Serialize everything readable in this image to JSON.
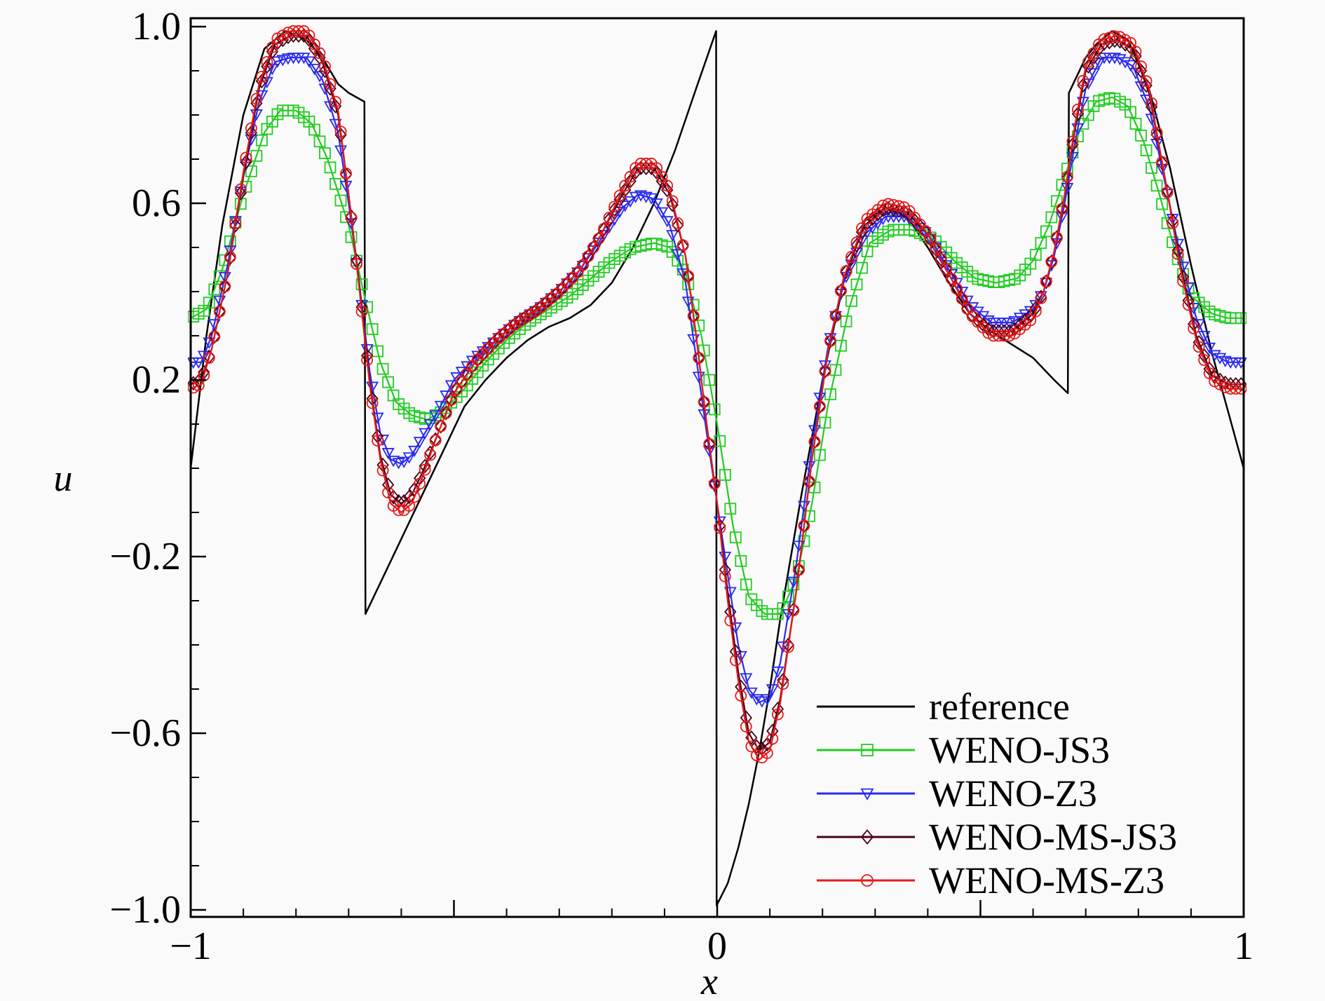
{
  "chart_data": {
    "type": "line",
    "title": "",
    "xlabel": "x",
    "ylabel": "u",
    "xlim": [
      -1,
      1
    ],
    "ylim": [
      -1.0,
      1.0
    ],
    "x_ticks": [
      -1,
      0,
      1
    ],
    "x_tick_labels": [
      "−1",
      "0",
      "1"
    ],
    "y_ticks": [
      1.0,
      0.6,
      0.2,
      -0.2,
      -0.6,
      -1.0
    ],
    "y_tick_labels": [
      "1.0",
      "0.6",
      "0.2",
      "−0.2",
      "−0.6",
      "−1.0"
    ],
    "legend_position": "bottom-right",
    "series": [
      {
        "name": "reference",
        "color": "#000000",
        "marker": "none",
        "x": [
          -1.0,
          -0.97,
          -0.94,
          -0.9,
          -0.86,
          -0.82,
          -0.78,
          -0.75,
          -0.72,
          -0.7,
          -0.67,
          -0.668,
          -0.64,
          -0.6,
          -0.56,
          -0.52,
          -0.48,
          -0.44,
          -0.4,
          -0.36,
          -0.32,
          -0.28,
          -0.24,
          -0.2,
          -0.16,
          -0.12,
          -0.08,
          -0.04,
          -0.002,
          -0.001,
          0.02,
          0.04,
          0.06,
          0.08,
          0.1,
          0.12,
          0.16,
          0.2,
          0.24,
          0.28,
          0.32,
          0.36,
          0.4,
          0.44,
          0.48,
          0.52,
          0.56,
          0.6,
          0.64,
          0.666,
          0.668,
          0.7,
          0.72,
          0.75,
          0.78,
          0.82,
          0.86,
          0.9,
          0.94,
          0.97,
          1.0
        ],
        "y": [
          0.0,
          0.3,
          0.55,
          0.8,
          0.95,
          0.99,
          0.97,
          0.93,
          0.87,
          0.85,
          0.83,
          -0.33,
          -0.26,
          -0.16,
          -0.06,
          0.04,
          0.14,
          0.2,
          0.25,
          0.29,
          0.32,
          0.34,
          0.37,
          0.42,
          0.5,
          0.6,
          0.72,
          0.86,
          0.99,
          -0.99,
          -0.94,
          -0.86,
          -0.76,
          -0.64,
          -0.5,
          -0.34,
          -0.06,
          0.2,
          0.42,
          0.56,
          0.59,
          0.57,
          0.5,
          0.42,
          0.35,
          0.31,
          0.28,
          0.25,
          0.2,
          0.17,
          0.85,
          0.93,
          0.96,
          0.99,
          0.97,
          0.86,
          0.68,
          0.46,
          0.26,
          0.13,
          0.0
        ]
      },
      {
        "name": "WENO-JS3",
        "color": "#22cc22",
        "marker": "square",
        "x": [
          -1.0,
          -0.97,
          -0.94,
          -0.9,
          -0.86,
          -0.83,
          -0.8,
          -0.77,
          -0.74,
          -0.7,
          -0.67,
          -0.64,
          -0.61,
          -0.58,
          -0.55,
          -0.52,
          -0.48,
          -0.44,
          -0.4,
          -0.36,
          -0.32,
          -0.28,
          -0.24,
          -0.2,
          -0.16,
          -0.12,
          -0.09,
          -0.06,
          -0.03,
          0.0,
          0.03,
          0.06,
          0.09,
          0.12,
          0.15,
          0.18,
          0.21,
          0.25,
          0.29,
          0.33,
          0.37,
          0.41,
          0.45,
          0.49,
          0.53,
          0.57,
          0.6,
          0.63,
          0.66,
          0.69,
          0.72,
          0.75,
          0.78,
          0.81,
          0.84,
          0.87,
          0.9,
          0.94,
          0.97,
          1.0
        ],
        "y": [
          0.34,
          0.36,
          0.45,
          0.62,
          0.76,
          0.81,
          0.81,
          0.78,
          0.7,
          0.55,
          0.39,
          0.24,
          0.15,
          0.12,
          0.11,
          0.13,
          0.18,
          0.24,
          0.29,
          0.33,
          0.36,
          0.39,
          0.43,
          0.47,
          0.5,
          0.51,
          0.5,
          0.44,
          0.3,
          0.1,
          -0.13,
          -0.29,
          -0.33,
          -0.33,
          -0.25,
          -0.08,
          0.14,
          0.36,
          0.51,
          0.54,
          0.54,
          0.52,
          0.47,
          0.43,
          0.42,
          0.43,
          0.47,
          0.55,
          0.66,
          0.77,
          0.83,
          0.84,
          0.82,
          0.74,
          0.62,
          0.49,
          0.39,
          0.35,
          0.34,
          0.34
        ]
      },
      {
        "name": "WENO-Z3",
        "color": "#2a2af0",
        "marker": "triangle-down",
        "x": [
          -1.0,
          -0.98,
          -0.96,
          -0.93,
          -0.9,
          -0.87,
          -0.84,
          -0.81,
          -0.78,
          -0.75,
          -0.72,
          -0.7,
          -0.68,
          -0.66,
          -0.64,
          -0.62,
          -0.6,
          -0.58,
          -0.56,
          -0.53,
          -0.5,
          -0.46,
          -0.42,
          -0.38,
          -0.34,
          -0.3,
          -0.26,
          -0.22,
          -0.18,
          -0.15,
          -0.12,
          -0.09,
          -0.06,
          -0.04,
          -0.02,
          0.0,
          0.02,
          0.04,
          0.06,
          0.08,
          0.1,
          0.12,
          0.15,
          0.18,
          0.21,
          0.24,
          0.28,
          0.32,
          0.36,
          0.4,
          0.44,
          0.48,
          0.52,
          0.56,
          0.6,
          0.62,
          0.64,
          0.66,
          0.68,
          0.7,
          0.73,
          0.76,
          0.79,
          0.82,
          0.85,
          0.88,
          0.91,
          0.94,
          0.97,
          1.0
        ],
        "y": [
          0.24,
          0.24,
          0.3,
          0.46,
          0.66,
          0.83,
          0.92,
          0.93,
          0.93,
          0.88,
          0.76,
          0.6,
          0.42,
          0.22,
          0.08,
          0.02,
          0.01,
          0.03,
          0.07,
          0.13,
          0.2,
          0.25,
          0.29,
          0.33,
          0.36,
          0.4,
          0.45,
          0.52,
          0.59,
          0.62,
          0.61,
          0.55,
          0.42,
          0.25,
          0.08,
          -0.08,
          -0.24,
          -0.4,
          -0.5,
          -0.53,
          -0.52,
          -0.44,
          -0.22,
          0.05,
          0.27,
          0.42,
          0.53,
          0.57,
          0.57,
          0.53,
          0.45,
          0.37,
          0.33,
          0.33,
          0.36,
          0.4,
          0.48,
          0.6,
          0.74,
          0.86,
          0.93,
          0.93,
          0.91,
          0.82,
          0.65,
          0.48,
          0.34,
          0.26,
          0.24,
          0.24
        ]
      },
      {
        "name": "WENO-MS-JS3",
        "color": "#4a0018",
        "marker": "diamond",
        "x": [
          -1.0,
          -0.98,
          -0.96,
          -0.93,
          -0.9,
          -0.87,
          -0.84,
          -0.81,
          -0.78,
          -0.75,
          -0.72,
          -0.7,
          -0.68,
          -0.66,
          -0.64,
          -0.62,
          -0.6,
          -0.58,
          -0.56,
          -0.53,
          -0.5,
          -0.46,
          -0.42,
          -0.38,
          -0.34,
          -0.3,
          -0.26,
          -0.22,
          -0.18,
          -0.15,
          -0.12,
          -0.09,
          -0.06,
          -0.04,
          -0.02,
          0.0,
          0.02,
          0.04,
          0.06,
          0.08,
          0.1,
          0.12,
          0.15,
          0.18,
          0.21,
          0.24,
          0.28,
          0.32,
          0.36,
          0.4,
          0.44,
          0.48,
          0.52,
          0.56,
          0.6,
          0.62,
          0.64,
          0.66,
          0.68,
          0.7,
          0.73,
          0.76,
          0.79,
          0.82,
          0.85,
          0.88,
          0.91,
          0.94,
          0.97,
          1.0
        ],
        "y": [
          0.19,
          0.2,
          0.27,
          0.44,
          0.66,
          0.86,
          0.96,
          0.98,
          0.98,
          0.92,
          0.8,
          0.62,
          0.42,
          0.2,
          0.03,
          -0.06,
          -0.08,
          -0.06,
          -0.01,
          0.08,
          0.17,
          0.24,
          0.29,
          0.33,
          0.36,
          0.4,
          0.45,
          0.53,
          0.62,
          0.68,
          0.68,
          0.62,
          0.48,
          0.3,
          0.1,
          -0.08,
          -0.28,
          -0.46,
          -0.6,
          -0.64,
          -0.62,
          -0.52,
          -0.28,
          0.02,
          0.26,
          0.43,
          0.55,
          0.59,
          0.58,
          0.53,
          0.44,
          0.35,
          0.31,
          0.31,
          0.35,
          0.4,
          0.49,
          0.62,
          0.77,
          0.9,
          0.96,
          0.97,
          0.95,
          0.85,
          0.66,
          0.46,
          0.3,
          0.21,
          0.19,
          0.19
        ]
      },
      {
        "name": "WENO-MS-Z3",
        "color": "#e81818",
        "marker": "circle",
        "x": [
          -1.0,
          -0.98,
          -0.96,
          -0.93,
          -0.9,
          -0.87,
          -0.84,
          -0.81,
          -0.78,
          -0.75,
          -0.72,
          -0.7,
          -0.68,
          -0.66,
          -0.64,
          -0.62,
          -0.6,
          -0.58,
          -0.56,
          -0.53,
          -0.5,
          -0.46,
          -0.42,
          -0.38,
          -0.34,
          -0.3,
          -0.26,
          -0.22,
          -0.18,
          -0.15,
          -0.12,
          -0.09,
          -0.06,
          -0.04,
          -0.02,
          0.0,
          0.02,
          0.04,
          0.06,
          0.08,
          0.1,
          0.12,
          0.15,
          0.18,
          0.21,
          0.24,
          0.28,
          0.32,
          0.36,
          0.4,
          0.44,
          0.48,
          0.52,
          0.56,
          0.6,
          0.62,
          0.64,
          0.66,
          0.68,
          0.7,
          0.73,
          0.76,
          0.79,
          0.82,
          0.85,
          0.88,
          0.91,
          0.94,
          0.97,
          1.0
        ],
        "y": [
          0.18,
          0.19,
          0.27,
          0.44,
          0.67,
          0.87,
          0.97,
          0.99,
          0.99,
          0.93,
          0.81,
          0.62,
          0.41,
          0.19,
          0.02,
          -0.08,
          -0.1,
          -0.08,
          -0.02,
          0.08,
          0.17,
          0.24,
          0.29,
          0.33,
          0.36,
          0.4,
          0.45,
          0.53,
          0.63,
          0.69,
          0.69,
          0.63,
          0.48,
          0.3,
          0.1,
          -0.08,
          -0.3,
          -0.48,
          -0.62,
          -0.66,
          -0.64,
          -0.53,
          -0.28,
          0.02,
          0.26,
          0.43,
          0.56,
          0.6,
          0.59,
          0.53,
          0.44,
          0.35,
          0.3,
          0.3,
          0.34,
          0.4,
          0.49,
          0.62,
          0.78,
          0.91,
          0.97,
          0.98,
          0.96,
          0.86,
          0.66,
          0.45,
          0.29,
          0.2,
          0.18,
          0.18
        ]
      }
    ]
  }
}
